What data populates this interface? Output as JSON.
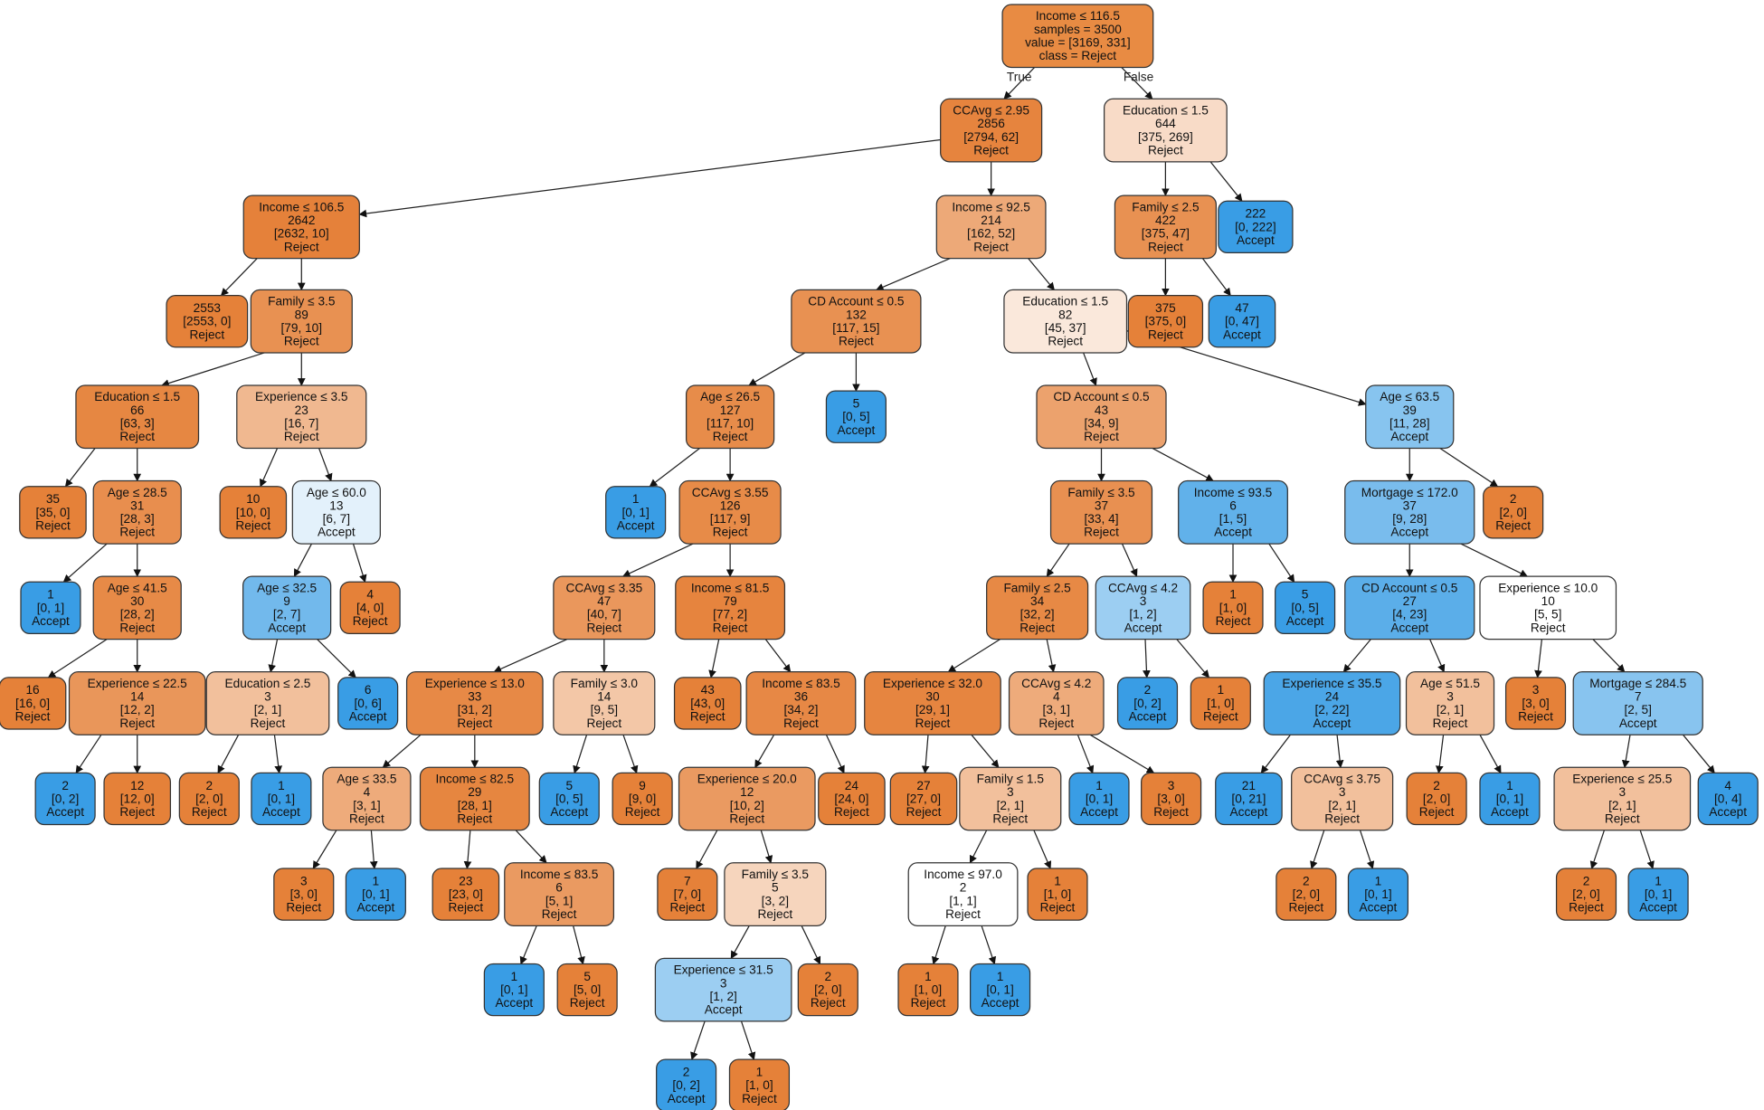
{
  "tree": {
    "colors": {
      "reject": "#e58139",
      "accept": "#399de5",
      "border": "#333333"
    },
    "edge_labels": {
      "true_label": "True",
      "false_label": "False"
    },
    "nodes": [
      {
        "lines": [
          "Income ≤ 116.5",
          "samples = 3500",
          "value = [3169, 331]",
          "class = Reject"
        ],
        "parent": null,
        "fill": "#e88b43"
      },
      {
        "lines": [
          "CCAvg ≤ 2.95",
          "2856",
          "[2794, 62]",
          "Reject"
        ],
        "parent": 0,
        "fill": "#e6843e"
      },
      {
        "lines": [
          "Education ≤ 1.5",
          "644",
          "[375, 269]",
          "Reject"
        ],
        "parent": 0,
        "fill": "#f8dbc7"
      },
      {
        "lines": [
          "Income ≤ 106.5",
          "2642",
          "[2632, 10]",
          "Reject"
        ],
        "parent": 1,
        "fill": "#e5813a"
      },
      {
        "lines": [
          "Income ≤ 92.5",
          "214",
          "[162, 52]",
          "Reject"
        ],
        "parent": 1,
        "fill": "#eda978"
      },
      {
        "lines": [
          "Family ≤ 2.5",
          "422",
          "[375, 47]",
          "Reject"
        ],
        "parent": 2,
        "fill": "#e89152"
      },
      {
        "lines": [
          "222",
          "[0, 222]",
          "Accept"
        ],
        "parent": 2,
        "fill": "#399de5"
      },
      {
        "lines": [
          "2553",
          "[2553, 0]",
          "Reject"
        ],
        "parent": 3,
        "fill": "#e58139"
      },
      {
        "lines": [
          "Family ≤ 3.5",
          "89",
          "[79, 10]",
          "Reject"
        ],
        "parent": 3,
        "fill": "#e89152"
      },
      {
        "lines": [
          "CD Account ≤ 0.5",
          "132",
          "[117, 15]",
          "Reject"
        ],
        "parent": 4,
        "fill": "#e89152"
      },
      {
        "lines": [
          "Education ≤ 1.5",
          "82",
          "[45, 37]",
          "Reject"
        ],
        "parent": 4,
        "fill": "#fae8db"
      },
      {
        "lines": [
          "375",
          "[375, 0]",
          "Reject"
        ],
        "parent": 5,
        "fill": "#e58139"
      },
      {
        "lines": [
          "47",
          "[0, 47]",
          "Accept"
        ],
        "parent": 5,
        "fill": "#399de5"
      },
      {
        "lines": [
          "Education ≤ 1.5",
          "66",
          "[63, 3]",
          "Reject"
        ],
        "parent": 8,
        "fill": "#e68742"
      },
      {
        "lines": [
          "Experience ≤ 3.5",
          "23",
          "[16, 7]",
          "Reject"
        ],
        "parent": 8,
        "fill": "#f0b890"
      },
      {
        "lines": [
          "Age ≤ 26.5",
          "127",
          "[117, 10]",
          "Reject"
        ],
        "parent": 9,
        "fill": "#e78c4a"
      },
      {
        "lines": [
          "5",
          "[0, 5]",
          "Accept"
        ],
        "parent": 9,
        "fill": "#399de5"
      },
      {
        "lines": [
          "CD Account ≤ 0.5",
          "43",
          "[34, 9]",
          "Reject"
        ],
        "parent": 10,
        "fill": "#eca26d"
      },
      {
        "lines": [
          "Age ≤ 63.5",
          "39",
          "[11, 28]",
          "Accept"
        ],
        "parent": 10,
        "fill": "#87c4ef"
      },
      {
        "lines": [
          "35",
          "[35, 0]",
          "Reject"
        ],
        "parent": 13,
        "fill": "#e58139"
      },
      {
        "lines": [
          "Age ≤ 28.5",
          "31",
          "[28, 3]",
          "Reject"
        ],
        "parent": 13,
        "fill": "#e88e4e"
      },
      {
        "lines": [
          "10",
          "[10, 0]",
          "Reject"
        ],
        "parent": 14,
        "fill": "#e58139"
      },
      {
        "lines": [
          "Age ≤ 60.0",
          "13",
          "[6, 7]",
          "Accept"
        ],
        "parent": 14,
        "fill": "#e3f1fb"
      },
      {
        "lines": [
          "1",
          "[0, 1]",
          "Accept"
        ],
        "parent": 15,
        "fill": "#399de5"
      },
      {
        "lines": [
          "CCAvg ≤ 3.55",
          "126",
          "[117, 9]",
          "Reject"
        ],
        "parent": 15,
        "fill": "#e78b48"
      },
      {
        "lines": [
          "Family ≤ 3.5",
          "37",
          "[33, 4]",
          "Reject"
        ],
        "parent": 17,
        "fill": "#e89051"
      },
      {
        "lines": [
          "Income ≤ 93.5",
          "6",
          "[1, 5]",
          "Accept"
        ],
        "parent": 17,
        "fill": "#61b1ea"
      },
      {
        "lines": [
          "Mortgage ≤ 172.0",
          "37",
          "[9, 28]",
          "Accept"
        ],
        "parent": 18,
        "fill": "#79bced"
      },
      {
        "lines": [
          "2",
          "[2, 0]",
          "Reject"
        ],
        "parent": 18,
        "fill": "#e58139"
      },
      {
        "lines": [
          "1",
          "[0, 1]",
          "Accept"
        ],
        "parent": 20,
        "fill": "#399de5"
      },
      {
        "lines": [
          "Age ≤ 41.5",
          "30",
          "[28, 2]",
          "Reject"
        ],
        "parent": 20,
        "fill": "#e78a47"
      },
      {
        "lines": [
          "Age ≤ 32.5",
          "9",
          "[2, 7]",
          "Accept"
        ],
        "parent": 22,
        "fill": "#72b9ec"
      },
      {
        "lines": [
          "4",
          "[4, 0]",
          "Reject"
        ],
        "parent": 22,
        "fill": "#e58139"
      },
      {
        "lines": [
          "CCAvg ≤ 3.35",
          "47",
          "[40, 7]",
          "Reject"
        ],
        "parent": 24,
        "fill": "#ea975c"
      },
      {
        "lines": [
          "Income ≤ 81.5",
          "79",
          "[77, 2]",
          "Reject"
        ],
        "parent": 24,
        "fill": "#e6843e"
      },
      {
        "lines": [
          "Family ≤ 2.5",
          "34",
          "[32, 2]",
          "Reject"
        ],
        "parent": 25,
        "fill": "#e78945"
      },
      {
        "lines": [
          "CCAvg ≤ 4.2",
          "3",
          "[1, 2]",
          "Accept"
        ],
        "parent": 25,
        "fill": "#9ccef2"
      },
      {
        "lines": [
          "1",
          "[1, 0]",
          "Reject"
        ],
        "parent": 26,
        "fill": "#e58139"
      },
      {
        "lines": [
          "5",
          "[0, 5]",
          "Accept"
        ],
        "parent": 26,
        "fill": "#399de5"
      },
      {
        "lines": [
          "CD Account ≤ 0.5",
          "27",
          "[4, 23]",
          "Accept"
        ],
        "parent": 27,
        "fill": "#5baee9"
      },
      {
        "lines": [
          "Experience ≤ 10.0",
          "10",
          "[5, 5]",
          "Reject"
        ],
        "parent": 27,
        "fill": "#ffffff"
      },
      {
        "lines": [
          "16",
          "[16, 0]",
          "Reject"
        ],
        "parent": 30,
        "fill": "#e58139"
      },
      {
        "lines": [
          "Experience ≤ 22.5",
          "14",
          "[12, 2]",
          "Reject"
        ],
        "parent": 30,
        "fill": "#e9965a"
      },
      {
        "lines": [
          "Education ≤ 2.5",
          "3",
          "[2, 1]",
          "Reject"
        ],
        "parent": 31,
        "fill": "#f2c09c"
      },
      {
        "lines": [
          "6",
          "[0, 6]",
          "Accept"
        ],
        "parent": 31,
        "fill": "#399de5"
      },
      {
        "lines": [
          "Experience ≤ 13.0",
          "33",
          "[31, 2]",
          "Reject"
        ],
        "parent": 33,
        "fill": "#e78946"
      },
      {
        "lines": [
          "Family ≤ 3.0",
          "14",
          "[9, 5]",
          "Reject"
        ],
        "parent": 33,
        "fill": "#f3c7a7"
      },
      {
        "lines": [
          "43",
          "[43, 0]",
          "Reject"
        ],
        "parent": 34,
        "fill": "#e58139"
      },
      {
        "lines": [
          "Income ≤ 83.5",
          "36",
          "[34, 2]",
          "Reject"
        ],
        "parent": 34,
        "fill": "#e78845"
      },
      {
        "lines": [
          "Experience ≤ 32.0",
          "30",
          "[29, 1]",
          "Reject"
        ],
        "parent": 35,
        "fill": "#e68540"
      },
      {
        "lines": [
          "CCAvg ≤ 4.2",
          "4",
          "[3, 1]",
          "Reject"
        ],
        "parent": 35,
        "fill": "#eeab7b"
      },
      {
        "lines": [
          "2",
          "[0, 2]",
          "Accept"
        ],
        "parent": 36,
        "fill": "#399de5"
      },
      {
        "lines": [
          "1",
          "[1, 0]",
          "Reject"
        ],
        "parent": 36,
        "fill": "#e58139"
      },
      {
        "lines": [
          "Experience ≤ 35.5",
          "24",
          "[2, 22]",
          "Accept"
        ],
        "parent": 39,
        "fill": "#4ba6e7"
      },
      {
        "lines": [
          "Age ≤ 51.5",
          "3",
          "[2, 1]",
          "Reject"
        ],
        "parent": 39,
        "fill": "#f2c09c"
      },
      {
        "lines": [
          "3",
          "[3, 0]",
          "Reject"
        ],
        "parent": 40,
        "fill": "#e58139"
      },
      {
        "lines": [
          "Mortgage ≤ 284.5",
          "7",
          "[2, 5]",
          "Accept"
        ],
        "parent": 40,
        "fill": "#88c4ef"
      },
      {
        "lines": [
          "2",
          "[0, 2]",
          "Accept"
        ],
        "parent": 42,
        "fill": "#399de5"
      },
      {
        "lines": [
          "12",
          "[12, 0]",
          "Reject"
        ],
        "parent": 42,
        "fill": "#e58139"
      },
      {
        "lines": [
          "2",
          "[2, 0]",
          "Reject"
        ],
        "parent": 43,
        "fill": "#e58139"
      },
      {
        "lines": [
          "1",
          "[0, 1]",
          "Accept"
        ],
        "parent": 43,
        "fill": "#399de5"
      },
      {
        "lines": [
          "Age ≤ 33.5",
          "4",
          "[3, 1]",
          "Reject"
        ],
        "parent": 45,
        "fill": "#eeab7b"
      },
      {
        "lines": [
          "Income ≤ 82.5",
          "29",
          "[28, 1]",
          "Reject"
        ],
        "parent": 45,
        "fill": "#e68640"
      },
      {
        "lines": [
          "5",
          "[0, 5]",
          "Accept"
        ],
        "parent": 46,
        "fill": "#399de5"
      },
      {
        "lines": [
          "9",
          "[9, 0]",
          "Reject"
        ],
        "parent": 46,
        "fill": "#e58139"
      },
      {
        "lines": [
          "Experience ≤ 20.0",
          "12",
          "[10, 2]",
          "Reject"
        ],
        "parent": 48,
        "fill": "#ea9a61"
      },
      {
        "lines": [
          "24",
          "[24, 0]",
          "Reject"
        ],
        "parent": 48,
        "fill": "#e58139"
      },
      {
        "lines": [
          "27",
          "[27, 0]",
          "Reject"
        ],
        "parent": 49,
        "fill": "#e58139"
      },
      {
        "lines": [
          "Family ≤ 1.5",
          "3",
          "[2, 1]",
          "Reject"
        ],
        "parent": 49,
        "fill": "#f2c09c"
      },
      {
        "lines": [
          "1",
          "[0, 1]",
          "Accept"
        ],
        "parent": 50,
        "fill": "#399de5"
      },
      {
        "lines": [
          "3",
          "[3, 0]",
          "Reject"
        ],
        "parent": 50,
        "fill": "#e58139"
      },
      {
        "lines": [
          "21",
          "[0, 21]",
          "Accept"
        ],
        "parent": 53,
        "fill": "#399de5"
      },
      {
        "lines": [
          "CCAvg ≤ 3.75",
          "3",
          "[2, 1]",
          "Reject"
        ],
        "parent": 53,
        "fill": "#f2c09c"
      },
      {
        "lines": [
          "2",
          "[2, 0]",
          "Reject"
        ],
        "parent": 54,
        "fill": "#e58139"
      },
      {
        "lines": [
          "1",
          "[0, 1]",
          "Accept"
        ],
        "parent": 54,
        "fill": "#399de5"
      },
      {
        "lines": [
          "Experience ≤ 25.5",
          "3",
          "[2, 1]",
          "Reject"
        ],
        "parent": 56,
        "fill": "#f2c09c"
      },
      {
        "lines": [
          "4",
          "[0, 4]",
          "Accept"
        ],
        "parent": 56,
        "fill": "#399de5"
      },
      {
        "lines": [
          "3",
          "[3, 0]",
          "Reject"
        ],
        "parent": 61,
        "fill": "#e58139"
      },
      {
        "lines": [
          "1",
          "[0, 1]",
          "Accept"
        ],
        "parent": 61,
        "fill": "#399de5"
      },
      {
        "lines": [
          "23",
          "[23, 0]",
          "Reject"
        ],
        "parent": 62,
        "fill": "#e58139"
      },
      {
        "lines": [
          "Income ≤ 83.5",
          "6",
          "[5, 1]",
          "Reject"
        ],
        "parent": 62,
        "fill": "#ea9a61"
      },
      {
        "lines": [
          "7",
          "[7, 0]",
          "Reject"
        ],
        "parent": 65,
        "fill": "#e58139"
      },
      {
        "lines": [
          "Family ≤ 3.5",
          "5",
          "[3, 2]",
          "Reject"
        ],
        "parent": 65,
        "fill": "#f6d5bd"
      },
      {
        "lines": [
          "Income ≤ 97.0",
          "2",
          "[1, 1]",
          "Reject"
        ],
        "parent": 68,
        "fill": "#ffffff"
      },
      {
        "lines": [
          "1",
          "[1, 0]",
          "Reject"
        ],
        "parent": 68,
        "fill": "#e58139"
      },
      {
        "lines": [
          "2",
          "[2, 0]",
          "Reject"
        ],
        "parent": 72,
        "fill": "#e58139"
      },
      {
        "lines": [
          "1",
          "[0, 1]",
          "Accept"
        ],
        "parent": 72,
        "fill": "#399de5"
      },
      {
        "lines": [
          "2",
          "[2, 0]",
          "Reject"
        ],
        "parent": 75,
        "fill": "#e58139"
      },
      {
        "lines": [
          "1",
          "[0, 1]",
          "Accept"
        ],
        "parent": 75,
        "fill": "#399de5"
      },
      {
        "lines": [
          "1",
          "[0, 1]",
          "Accept"
        ],
        "parent": 80,
        "fill": "#399de5"
      },
      {
        "lines": [
          "5",
          "[5, 0]",
          "Reject"
        ],
        "parent": 80,
        "fill": "#e58139"
      },
      {
        "lines": [
          "Experience ≤ 31.5",
          "3",
          "[1, 2]",
          "Accept"
        ],
        "parent": 82,
        "fill": "#9ccef2"
      },
      {
        "lines": [
          "2",
          "[2, 0]",
          "Reject"
        ],
        "parent": 82,
        "fill": "#e58139"
      },
      {
        "lines": [
          "1",
          "[1, 0]",
          "Reject"
        ],
        "parent": 83,
        "fill": "#e58139"
      },
      {
        "lines": [
          "1",
          "[0, 1]",
          "Accept"
        ],
        "parent": 83,
        "fill": "#399de5"
      },
      {
        "lines": [
          "2",
          "[0, 2]",
          "Accept"
        ],
        "parent": 91,
        "fill": "#399de5"
      },
      {
        "lines": [
          "1",
          "[1, 0]",
          "Reject"
        ],
        "parent": 91,
        "fill": "#e58139"
      }
    ]
  }
}
